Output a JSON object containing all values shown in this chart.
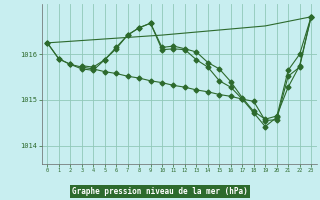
{
  "title": "Graphe pression niveau de la mer (hPa)",
  "bg_color": "#c8eef0",
  "plot_bg_color": "#c8eef0",
  "line_color": "#2d6a2d",
  "grid_color": "#90c8b8",
  "title_bg_color": "#2d6a2d",
  "title_text_color": "#ffffff",
  "axis_label_color": "#2d6a2d",
  "xlim": [
    -0.5,
    23.5
  ],
  "ylim": [
    1013.6,
    1017.1
  ],
  "yticks": [
    1014,
    1015,
    1016
  ],
  "xticks": [
    0,
    1,
    2,
    3,
    4,
    5,
    6,
    7,
    8,
    9,
    10,
    11,
    12,
    13,
    14,
    15,
    16,
    17,
    18,
    19,
    20,
    21,
    22,
    23
  ],
  "series": [
    {
      "x": [
        0,
        10,
        19,
        23
      ],
      "y": [
        1016.25,
        1016.42,
        1016.62,
        1016.82
      ]
    },
    {
      "x": [
        0,
        1,
        2,
        3,
        4,
        5,
        6,
        7,
        8,
        9,
        10,
        11,
        12,
        13,
        14,
        15,
        16,
        17,
        18,
        19,
        20,
        21,
        22,
        23
      ],
      "y": [
        1016.25,
        1015.9,
        1015.78,
        1015.72,
        1015.68,
        1015.62,
        1015.58,
        1015.52,
        1015.48,
        1015.42,
        1015.38,
        1015.32,
        1015.28,
        1015.22,
        1015.18,
        1015.12,
        1015.08,
        1015.02,
        1014.97,
        1014.55,
        1014.57,
        1015.52,
        1015.72,
        1016.82
      ]
    },
    {
      "x": [
        0,
        1,
        2,
        3,
        4,
        5,
        6,
        7,
        8,
        9,
        10,
        11,
        12,
        13,
        14,
        15,
        16,
        17,
        18,
        19,
        20,
        21,
        22,
        23
      ],
      "y": [
        1016.25,
        1015.9,
        1015.78,
        1015.68,
        1015.65,
        1015.88,
        1016.15,
        1016.42,
        1016.58,
        1016.68,
        1016.1,
        1016.12,
        1016.1,
        1015.88,
        1015.72,
        1015.42,
        1015.28,
        1015.02,
        1014.72,
        1014.42,
        1014.62,
        1015.65,
        1016.0,
        1016.82
      ]
    },
    {
      "x": [
        3,
        4,
        5,
        6,
        7,
        8,
        9,
        10,
        11,
        12,
        13,
        14,
        15,
        16,
        17,
        18,
        19,
        20,
        21,
        22,
        23
      ],
      "y": [
        1015.75,
        1015.72,
        1015.88,
        1016.12,
        1016.42,
        1016.58,
        1016.68,
        1016.15,
        1016.18,
        1016.12,
        1016.05,
        1015.82,
        1015.68,
        1015.4,
        1015.05,
        1014.75,
        1014.58,
        1014.65,
        1015.28,
        1015.75,
        1016.82
      ]
    }
  ]
}
